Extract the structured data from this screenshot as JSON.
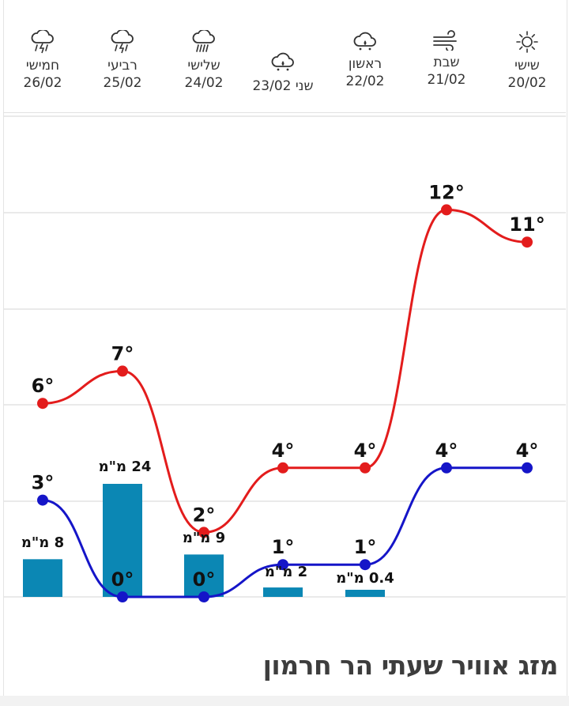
{
  "page": {
    "title": "מזג אוויר שעתי הר חרמון"
  },
  "days": [
    {
      "name": "שישי",
      "date": "20/02",
      "icon": "sun-icon"
    },
    {
      "name": "שבת",
      "date": "21/02",
      "icon": "wind-icon"
    },
    {
      "name": "ראשון",
      "date": "22/02",
      "icon": "cloud-drizzle-icon"
    },
    {
      "name": "שני",
      "date": "23/02",
      "icon": "cloud-drizzle-icon"
    },
    {
      "name": "שלישי",
      "date": "24/02",
      "icon": "cloud-rain-icon"
    },
    {
      "name": "רביעי",
      "date": "25/02",
      "icon": "thunderstorm-icon"
    },
    {
      "name": "חמישי",
      "date": "26/02",
      "icon": "thunderstorm-icon"
    }
  ],
  "chart_data": {
    "type": "line",
    "x": [
      "20/02",
      "21/02",
      "22/02",
      "23/02",
      "24/02",
      "25/02",
      "26/02"
    ],
    "series": [
      {
        "values": [
          11,
          12,
          4,
          4,
          2,
          7,
          6
        ],
        "color": "#e31c1c",
        "labels": [
          "11°",
          "12°",
          "4°",
          "4°",
          "2°",
          "7°",
          "6°"
        ]
      },
      {
        "values": [
          4,
          4,
          1,
          1,
          0,
          0,
          3
        ],
        "color": "#1515c8",
        "labels": [
          "4°",
          "4°",
          "1°",
          "1°",
          "0°",
          "0°",
          "3°"
        ]
      }
    ],
    "precipitation": {
      "type": "bar",
      "values": [
        0,
        0,
        0.4,
        2,
        9,
        24,
        8
      ],
      "labels": [
        "",
        "",
        "0.4 מ\"מ",
        "2 מ\"מ",
        "9 מ\"מ",
        "24 מ\"מ",
        "8 מ\"מ"
      ],
      "color": "#0b87b4"
    },
    "ylim": [
      0,
      15
    ],
    "grid": true,
    "direction": "rtl"
  }
}
